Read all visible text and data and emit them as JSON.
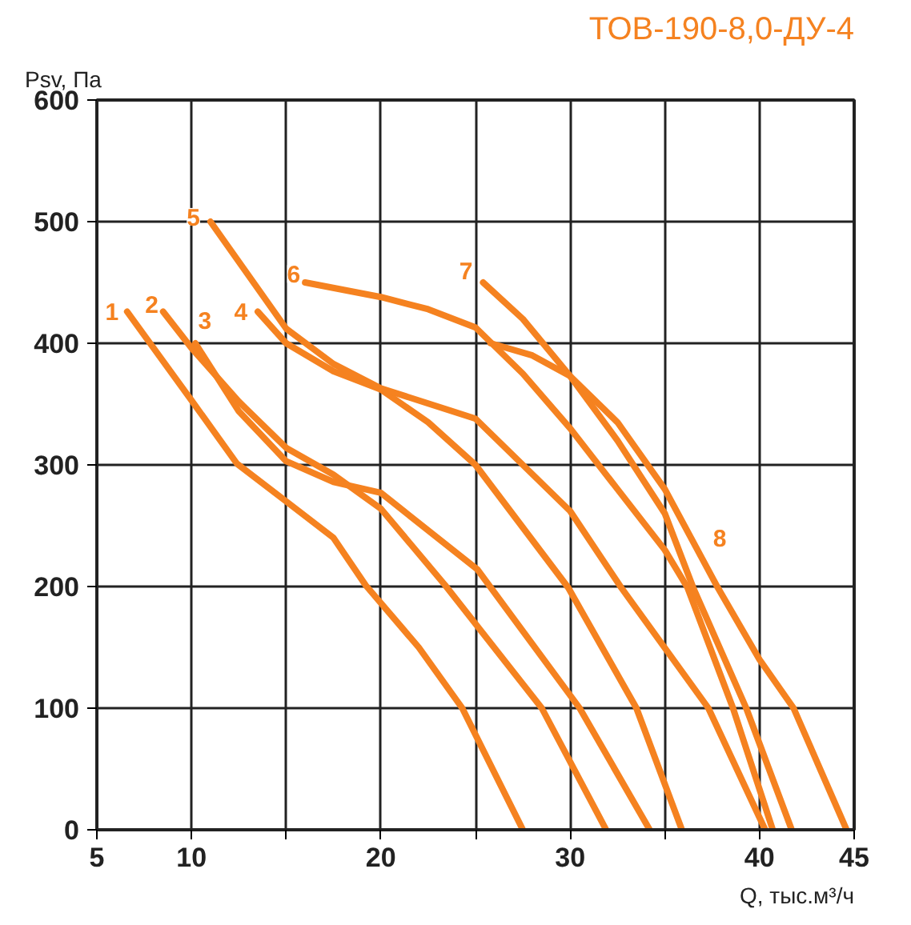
{
  "chart_data": {
    "type": "line",
    "title": "ТОВ-190-8,0-ДУ-4",
    "xlabel": "Q, тыс.м³/ч",
    "ylabel": "Psv, Па",
    "xlim": [
      5,
      45
    ],
    "ylim": [
      0,
      600
    ],
    "xticks": [
      5,
      10,
      {
        "value": 15,
        "label": null
      },
      20,
      {
        "value": 25,
        "label": null
      },
      30,
      {
        "value": 35,
        "label": null
      },
      40,
      45
    ],
    "yticks": [
      0,
      100,
      200,
      300,
      400,
      500,
      600
    ],
    "grid": true,
    "marker": "none",
    "line_style": "solid",
    "series": [
      {
        "color": "#f58220",
        "x": [
          6.6,
          10,
          12.4,
          15,
          17.5,
          19.2,
          22,
          24.3,
          27.5
        ],
        "values": [
          426,
          353,
          301,
          270,
          240,
          201,
          150,
          100,
          0
        ]
      },
      {
        "color": "#f58220",
        "x": [
          8.5,
          10,
          12.5,
          15,
          17.5,
          20,
          23.4,
          28.5,
          31.9
        ],
        "values": [
          426,
          396,
          352,
          314,
          292,
          264,
          201,
          100,
          0
        ]
      },
      {
        "color": "#f58220",
        "x": [
          10.2,
          12.5,
          15,
          17.5,
          20,
          25.1,
          30.5,
          34.2
        ],
        "values": [
          400,
          344,
          303,
          286,
          277,
          214,
          100,
          0
        ]
      },
      {
        "color": "#f58220",
        "x": [
          13.5,
          15,
          17.5,
          20,
          22.5,
          25,
          29.9,
          33.5,
          35.9
        ],
        "values": [
          426,
          400,
          377,
          362,
          335,
          300,
          199,
          100,
          0
        ]
      },
      {
        "color": "#f58220",
        "x": [
          11,
          15,
          17.5,
          20,
          25,
          30,
          32.7,
          37.3,
          40.3
        ],
        "values": [
          500,
          412,
          383,
          363,
          338,
          262,
          199,
          100,
          0
        ]
      },
      {
        "color": "#f58220",
        "x": [
          16,
          20,
          22.5,
          25,
          27.5,
          30,
          32.5,
          35,
          36.2,
          38.6,
          40.7
        ],
        "values": [
          450,
          438,
          428,
          413,
          375,
          330,
          280,
          230,
          199,
          100,
          0
        ]
      },
      {
        "color": "#f58220",
        "x": [
          25.4,
          27.5,
          30,
          32.5,
          35,
          36.5,
          39.3,
          41.7
        ],
        "values": [
          450,
          420,
          373,
          320,
          260,
          199,
          100,
          0
        ]
      },
      {
        "color": "#f58220",
        "x": [
          25.8,
          28,
          30,
          32.5,
          35,
          37.8,
          40,
          41.8,
          44.6
        ],
        "values": [
          400,
          390,
          373,
          335,
          280,
          199,
          140,
          100,
          0
        ]
      }
    ],
    "annotations": [
      {
        "text": "1",
        "x": 5.8,
        "y": 426
      },
      {
        "text": "2",
        "x": 7.9,
        "y": 432
      },
      {
        "text": "3",
        "x": 10.7,
        "y": 419
      },
      {
        "text": "4",
        "x": 12.6,
        "y": 426
      },
      {
        "text": "5",
        "x": 10.1,
        "y": 504
      },
      {
        "text": "6",
        "x": 15.4,
        "y": 457
      },
      {
        "text": "7",
        "x": 24.5,
        "y": 460
      },
      {
        "text": "8",
        "x": 37.9,
        "y": 240
      }
    ]
  }
}
